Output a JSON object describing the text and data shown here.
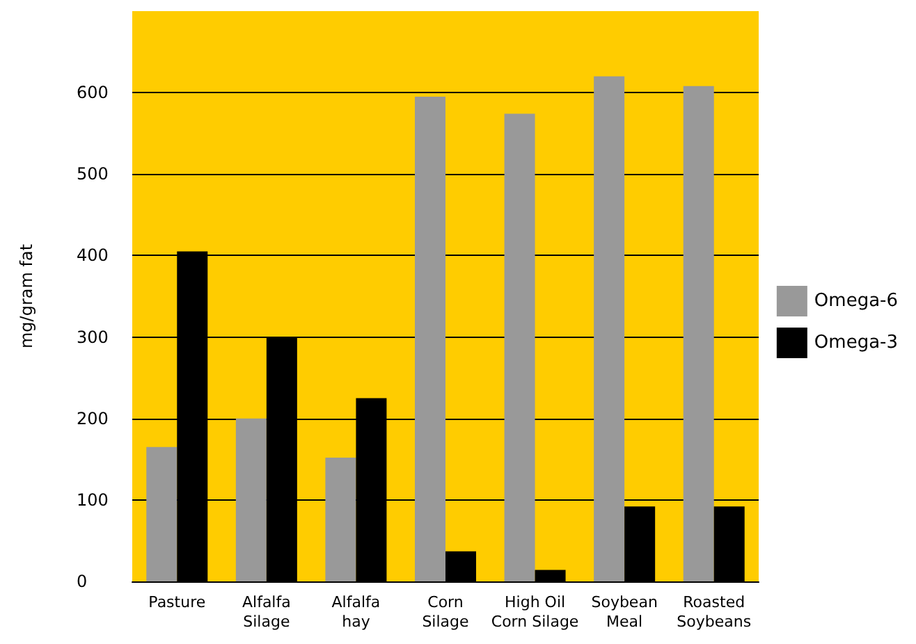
{
  "chart_data": {
    "type": "bar",
    "ylabel": "mg/gram fat",
    "categories": [
      "Pasture",
      "Alfalfa\nSilage",
      "Alfalfa\nhay",
      "Corn\nSilage",
      "High Oil\nCorn Silage",
      "Soybean\nMeal",
      "Roasted\nSoybeans"
    ],
    "series": [
      {
        "name": "Omega-6",
        "color": "#999999",
        "values": [
          165,
          200,
          152,
          595,
          574,
          620,
          608
        ]
      },
      {
        "name": "Omega-3",
        "color": "#000000",
        "values": [
          405,
          300,
          225,
          37,
          14,
          92,
          92
        ]
      }
    ],
    "ylim": [
      0,
      700
    ],
    "yticks": [
      0,
      100,
      200,
      300,
      400,
      500,
      600
    ],
    "grid": "y",
    "legend": "right"
  }
}
